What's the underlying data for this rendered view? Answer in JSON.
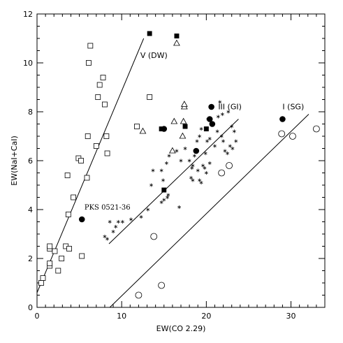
{
  "chart_data": {
    "type": "scatter",
    "xlabel": "EW(CO 2.29)",
    "ylabel": "EW(NaI+CaI)",
    "xlim": [
      0,
      34
    ],
    "ylim": [
      0,
      12
    ],
    "xticks": [
      0,
      10,
      20,
      30
    ],
    "yticks": [
      0,
      2,
      4,
      6,
      8,
      10,
      12
    ],
    "grid": false,
    "x_minor_step": 1,
    "y_minor_step": 0.5,
    "series": [
      {
        "marker": "open-square",
        "points": [
          [
            0.5,
            1.0
          ],
          [
            0.7,
            1.2
          ],
          [
            1.5,
            1.7
          ],
          [
            1.5,
            1.8
          ],
          [
            1.5,
            2.4
          ],
          [
            1.5,
            2.5
          ],
          [
            2.1,
            2.3
          ],
          [
            2.5,
            1.5
          ],
          [
            2.9,
            2.0
          ],
          [
            3.4,
            2.5
          ],
          [
            3.8,
            2.4
          ],
          [
            3.7,
            3.8
          ],
          [
            3.6,
            5.4
          ],
          [
            4.3,
            4.5
          ],
          [
            4.9,
            6.1
          ],
          [
            5.2,
            6.0
          ],
          [
            5.3,
            2.1
          ],
          [
            5.9,
            5.3
          ],
          [
            6.0,
            7.0
          ],
          [
            6.1,
            10.0
          ],
          [
            6.3,
            10.7
          ],
          [
            7.0,
            6.6
          ],
          [
            7.2,
            8.6
          ],
          [
            7.4,
            9.1
          ],
          [
            7.8,
            9.4
          ],
          [
            8.0,
            8.3
          ],
          [
            8.2,
            7.0
          ],
          [
            8.3,
            6.3
          ],
          [
            11.8,
            7.4
          ],
          [
            13.3,
            8.6
          ]
        ]
      },
      {
        "marker": "filled-square",
        "points": [
          [
            13.3,
            11.2
          ],
          [
            16.5,
            11.1
          ],
          [
            14.7,
            7.3
          ],
          [
            17.5,
            7.4
          ],
          [
            20.0,
            7.3
          ],
          [
            15.0,
            4.8
          ]
        ]
      },
      {
        "marker": "open-triangle",
        "points": [
          [
            16.5,
            10.8
          ],
          [
            12.5,
            7.2
          ],
          [
            16.2,
            7.6
          ],
          [
            17.4,
            8.2
          ],
          [
            17.4,
            8.3
          ],
          [
            17.3,
            7.6
          ],
          [
            17.2,
            7.0
          ],
          [
            16.0,
            6.4
          ]
        ]
      },
      {
        "marker": "filled-circle",
        "points": [
          [
            5.3,
            3.6
          ],
          [
            15.0,
            7.3
          ],
          [
            18.8,
            6.4
          ],
          [
            20.6,
            8.2
          ],
          [
            20.4,
            7.7
          ],
          [
            20.7,
            7.5
          ],
          [
            29.0,
            7.7
          ]
        ]
      },
      {
        "marker": "open-circle",
        "points": [
          [
            12.0,
            0.5
          ],
          [
            14.7,
            0.9
          ],
          [
            13.8,
            2.9
          ],
          [
            21.8,
            5.5
          ],
          [
            22.7,
            5.8
          ],
          [
            28.9,
            7.1
          ],
          [
            30.2,
            7.0
          ],
          [
            33.0,
            7.3
          ]
        ]
      },
      {
        "marker": "asterisk",
        "points": [
          [
            8.0,
            2.9
          ],
          [
            8.3,
            2.8
          ],
          [
            8.6,
            3.5
          ],
          [
            9.0,
            3.1
          ],
          [
            9.3,
            3.3
          ],
          [
            9.6,
            3.5
          ],
          [
            10.1,
            3.5
          ],
          [
            11.1,
            3.6
          ],
          [
            12.3,
            3.7
          ],
          [
            13.1,
            4.0
          ],
          [
            14.7,
            4.3
          ],
          [
            15.0,
            4.4
          ],
          [
            15.5,
            4.6
          ],
          [
            13.5,
            5.0
          ],
          [
            14.9,
            5.2
          ],
          [
            15.4,
            4.5
          ],
          [
            16.8,
            4.1
          ],
          [
            13.7,
            5.6
          ],
          [
            14.7,
            5.6
          ],
          [
            15.3,
            5.9
          ],
          [
            15.6,
            6.2
          ],
          [
            16.5,
            6.4
          ],
          [
            17.0,
            6.0
          ],
          [
            17.5,
            6.5
          ],
          [
            18.0,
            6.0
          ],
          [
            18.3,
            5.7
          ],
          [
            18.4,
            5.8
          ],
          [
            18.2,
            5.3
          ],
          [
            18.4,
            5.2
          ],
          [
            19.0,
            5.6
          ],
          [
            19.2,
            5.2
          ],
          [
            19.4,
            5.1
          ],
          [
            19.6,
            5.8
          ],
          [
            19.8,
            5.7
          ],
          [
            20.0,
            5.5
          ],
          [
            20.4,
            5.9
          ],
          [
            18.6,
            6.2
          ],
          [
            18.9,
            6.8
          ],
          [
            19.2,
            7.0
          ],
          [
            19.4,
            7.3
          ],
          [
            19.9,
            6.3
          ],
          [
            20.1,
            6.8
          ],
          [
            20.4,
            6.9
          ],
          [
            21.0,
            6.6
          ],
          [
            21.3,
            7.2
          ],
          [
            21.8,
            7.0
          ],
          [
            22.0,
            6.8
          ],
          [
            22.2,
            6.4
          ],
          [
            22.5,
            6.3
          ],
          [
            22.8,
            6.6
          ],
          [
            23.1,
            6.5
          ],
          [
            23.5,
            6.8
          ],
          [
            21.6,
            8.4
          ],
          [
            22.6,
            8.0
          ],
          [
            23.0,
            7.4
          ],
          [
            23.3,
            7.2
          ],
          [
            21.9,
            7.9
          ],
          [
            21.4,
            7.8
          ],
          [
            20.2,
            7.7
          ]
        ]
      }
    ],
    "lines": [
      {
        "label": "V (DW)",
        "from": [
          0.0,
          0.6
        ],
        "to": [
          12.6,
          11.0
        ]
      },
      {
        "label": "III (GI)",
        "from": [
          8.5,
          2.6
        ],
        "to": [
          23.8,
          7.7
        ]
      },
      {
        "label": "I (SG)",
        "from": [
          8.6,
          0.0
        ],
        "to": [
          32.1,
          7.9
        ]
      }
    ],
    "annotations": [
      {
        "text": "V (DW)",
        "x": 12.2,
        "y": 10.2
      },
      {
        "text": "III (GI)",
        "x": 21.4,
        "y": 8.1
      },
      {
        "text": "I (SG)",
        "x": 29.0,
        "y": 8.1
      },
      {
        "text": "PKS 0521-36",
        "x": 5.6,
        "y": 4.0
      }
    ]
  }
}
